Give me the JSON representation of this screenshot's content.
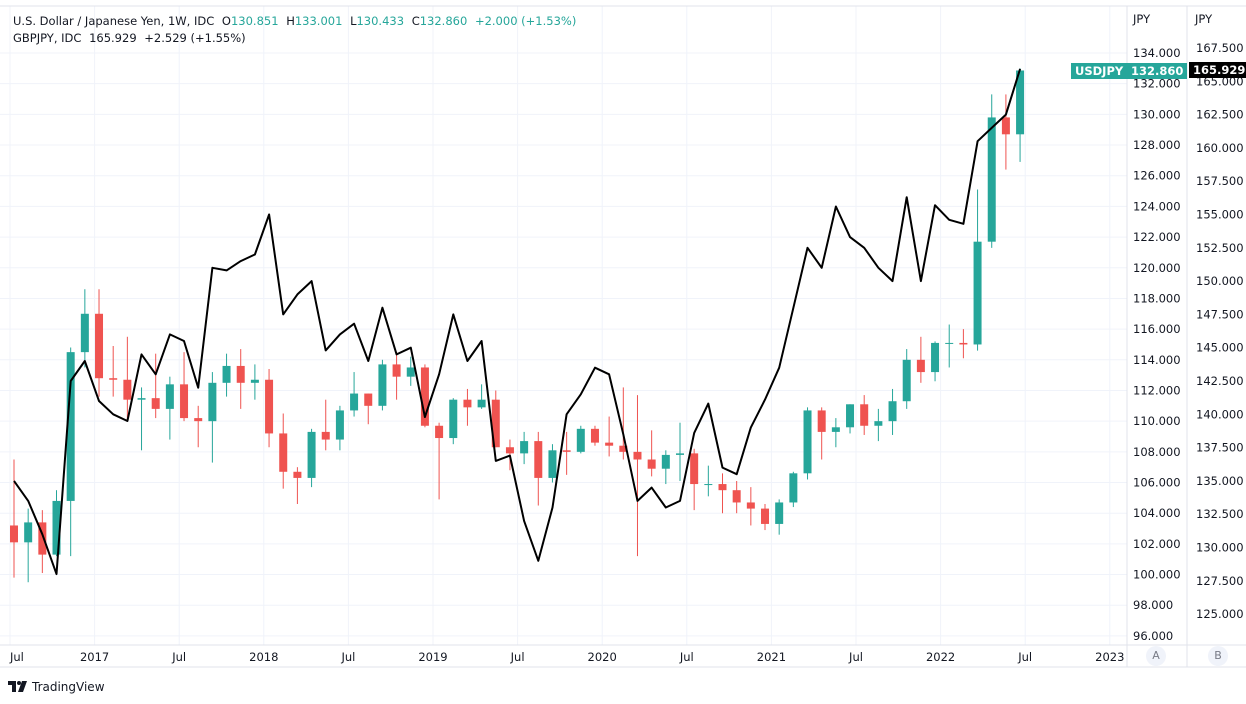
{
  "legend": {
    "main_title": "U.S. Dollar / Japanese Yen, 1W, IDC",
    "open_label": "O",
    "open": "130.851",
    "high_label": "H",
    "high": "133.001",
    "low_label": "L",
    "low": "130.433",
    "close_label": "C",
    "close": "132.860",
    "change": "+2.000 (+1.53%)",
    "compare_title": "GBPJPY, IDC",
    "compare_value": "165.929",
    "compare_change": "+2.529 (+1.55%)"
  },
  "axes": {
    "left_unit": "JPY",
    "right_unit": "JPY",
    "usdjpy_ticks": [
      "96.000",
      "98.000",
      "100.000",
      "102.000",
      "104.000",
      "106.000",
      "108.000",
      "110.000",
      "112.000",
      "114.000",
      "116.000",
      "118.000",
      "120.000",
      "122.000",
      "124.000",
      "126.000",
      "128.000",
      "130.000",
      "132.000",
      "134.000"
    ],
    "gbpjpy_ticks": [
      "125.000",
      "127.500",
      "130.000",
      "132.500",
      "135.000",
      "137.500",
      "140.000",
      "142.500",
      "145.000",
      "147.500",
      "150.000",
      "152.500",
      "155.000",
      "157.500",
      "160.000",
      "162.500",
      "165.000",
      "167.500"
    ],
    "time_ticks": [
      "Jul",
      "2017",
      "Jul",
      "2018",
      "Jul",
      "2019",
      "Jul",
      "2020",
      "Jul",
      "2021",
      "Jul",
      "2022",
      "Jul",
      "2023"
    ],
    "scale_buttons": [
      "A",
      "B"
    ]
  },
  "badges": {
    "symbol": "USDJPY",
    "usdjpy_price": "132.860",
    "gbpjpy_price": "165.929"
  },
  "brand": "TradingView",
  "colors": {
    "up": "#26a69a",
    "down": "#ef5350",
    "compare_line": "#000000",
    "grid": "#f0f3fa"
  },
  "chart_data": {
    "type": "candlestick+line",
    "grid": true,
    "usdjpy_range": [
      96,
      134
    ],
    "gbpjpy_range": [
      125,
      167.5
    ],
    "dates": [
      "2016-07",
      "2016-08",
      "2016-09",
      "2016-10",
      "2016-11",
      "2016-12",
      "2017-01",
      "2017-02",
      "2017-03",
      "2017-04",
      "2017-05",
      "2017-06",
      "2017-07",
      "2017-08",
      "2017-09",
      "2017-10",
      "2017-11",
      "2017-12",
      "2018-01",
      "2018-02",
      "2018-03",
      "2018-04",
      "2018-05",
      "2018-06",
      "2018-07",
      "2018-08",
      "2018-09",
      "2018-10",
      "2018-11",
      "2018-12",
      "2019-01",
      "2019-02",
      "2019-03",
      "2019-04",
      "2019-05",
      "2019-06",
      "2019-07",
      "2019-08",
      "2019-09",
      "2019-10",
      "2019-11",
      "2019-12",
      "2020-01",
      "2020-02",
      "2020-03",
      "2020-04",
      "2020-05",
      "2020-06",
      "2020-07",
      "2020-08",
      "2020-09",
      "2020-10",
      "2020-11",
      "2020-12",
      "2021-01",
      "2021-02",
      "2021-03",
      "2021-04",
      "2021-05",
      "2021-06",
      "2021-07",
      "2021-08",
      "2021-09",
      "2021-10",
      "2021-11",
      "2021-12",
      "2022-01",
      "2022-02",
      "2022-03",
      "2022-04",
      "2022-05",
      "2022-06"
    ],
    "usdjpy_ohlc": [
      [
        103.2,
        107.5,
        99.8,
        102.1
      ],
      [
        102.1,
        104.3,
        99.5,
        103.4
      ],
      [
        103.4,
        104.2,
        100.1,
        101.3
      ],
      [
        101.3,
        105.5,
        101.2,
        104.8
      ],
      [
        104.8,
        114.8,
        101.2,
        114.5
      ],
      [
        114.5,
        118.6,
        113.5,
        117.0
      ],
      [
        117.0,
        118.6,
        111.6,
        112.8
      ],
      [
        112.8,
        114.9,
        111.6,
        112.7
      ],
      [
        112.7,
        115.5,
        110.1,
        111.4
      ],
      [
        111.4,
        112.2,
        108.1,
        111.5
      ],
      [
        111.5,
        114.4,
        110.2,
        110.8
      ],
      [
        110.8,
        112.9,
        108.8,
        112.4
      ],
      [
        112.4,
        114.5,
        110.0,
        110.2
      ],
      [
        110.2,
        111.0,
        108.3,
        110.0
      ],
      [
        110.0,
        113.2,
        107.3,
        112.5
      ],
      [
        112.5,
        114.4,
        111.6,
        113.6
      ],
      [
        113.6,
        114.7,
        110.8,
        112.5
      ],
      [
        112.5,
        113.7,
        111.4,
        112.7
      ],
      [
        112.7,
        113.4,
        108.3,
        109.2
      ],
      [
        109.2,
        110.5,
        105.6,
        106.7
      ],
      [
        106.7,
        107.0,
        104.6,
        106.3
      ],
      [
        106.3,
        109.5,
        105.7,
        109.3
      ],
      [
        109.3,
        111.4,
        108.1,
        108.8
      ],
      [
        108.8,
        111.0,
        108.1,
        110.7
      ],
      [
        110.7,
        113.2,
        110.3,
        111.8
      ],
      [
        111.8,
        111.8,
        109.8,
        111.0
      ],
      [
        111.0,
        114.0,
        110.7,
        113.7
      ],
      [
        113.7,
        114.5,
        111.4,
        112.9
      ],
      [
        112.9,
        114.2,
        112.3,
        113.5
      ],
      [
        113.5,
        113.7,
        109.6,
        109.7
      ],
      [
        109.7,
        109.9,
        104.9,
        108.9
      ],
      [
        108.9,
        111.5,
        108.5,
        111.4
      ],
      [
        111.4,
        112.1,
        109.7,
        110.9
      ],
      [
        110.9,
        112.4,
        110.8,
        111.4
      ],
      [
        111.4,
        112.0,
        108.3,
        108.3
      ],
      [
        108.3,
        108.8,
        106.8,
        107.9
      ],
      [
        107.9,
        109.3,
        107.2,
        108.7
      ],
      [
        108.7,
        109.3,
        104.5,
        106.3
      ],
      [
        106.3,
        108.5,
        106.0,
        108.1
      ],
      [
        108.1,
        109.3,
        106.5,
        108.0
      ],
      [
        108.0,
        109.7,
        107.9,
        109.5
      ],
      [
        109.5,
        109.7,
        108.4,
        108.6
      ],
      [
        108.6,
        110.3,
        107.7,
        108.4
      ],
      [
        108.4,
        112.2,
        107.5,
        108.0
      ],
      [
        108.0,
        111.7,
        101.2,
        107.5
      ],
      [
        107.5,
        109.4,
        106.4,
        106.9
      ],
      [
        106.9,
        108.1,
        105.9,
        107.8
      ],
      [
        107.8,
        109.9,
        106.1,
        107.9
      ],
      [
        107.9,
        108.2,
        104.2,
        105.9
      ],
      [
        105.9,
        107.1,
        105.1,
        105.9
      ],
      [
        105.9,
        106.6,
        104.0,
        105.5
      ],
      [
        105.5,
        106.1,
        104.0,
        104.7
      ],
      [
        104.7,
        105.7,
        103.2,
        104.3
      ],
      [
        104.3,
        104.6,
        102.9,
        103.3
      ],
      [
        103.3,
        104.9,
        102.6,
        104.7
      ],
      [
        104.7,
        106.7,
        104.4,
        106.6
      ],
      [
        106.6,
        110.9,
        106.2,
        110.7
      ],
      [
        110.7,
        110.9,
        107.5,
        109.3
      ],
      [
        109.3,
        110.2,
        108.3,
        109.6
      ],
      [
        109.6,
        111.1,
        109.2,
        111.1
      ],
      [
        111.1,
        111.7,
        109.1,
        109.7
      ],
      [
        109.7,
        110.8,
        108.7,
        110.0
      ],
      [
        110.0,
        112.1,
        109.1,
        111.3
      ],
      [
        111.3,
        114.7,
        110.8,
        114.0
      ],
      [
        114.0,
        115.5,
        112.5,
        113.2
      ],
      [
        113.2,
        115.2,
        112.6,
        115.1
      ],
      [
        115.1,
        116.3,
        113.5,
        115.1
      ],
      [
        115.1,
        116.0,
        114.1,
        115.0
      ],
      [
        115.0,
        125.1,
        114.6,
        121.7
      ],
      [
        121.7,
        131.3,
        121.3,
        129.8
      ],
      [
        129.8,
        131.3,
        126.4,
        128.7
      ],
      [
        128.7,
        133.0,
        126.9,
        132.86
      ]
    ],
    "gbpjpy_close": [
      135.0,
      133.5,
      131.0,
      128.0,
      142.5,
      144.0,
      141.0,
      140.0,
      139.5,
      144.5,
      143.0,
      146.0,
      145.5,
      142.0,
      151.0,
      150.8,
      151.5,
      152.0,
      155.0,
      147.5,
      149.0,
      150.0,
      144.8,
      146.0,
      146.8,
      144.0,
      148.0,
      144.5,
      145.0,
      139.8,
      143.0,
      147.5,
      144.0,
      145.5,
      136.5,
      136.9,
      132.0,
      129.0,
      133.0,
      140.0,
      141.5,
      143.5,
      143.0,
      138.5,
      133.5,
      134.5,
      133.0,
      133.5,
      138.6,
      140.8,
      136.0,
      135.5,
      139.0,
      141.1,
      143.5,
      148.0,
      152.5,
      151.0,
      155.6,
      153.3,
      152.5,
      151.0,
      150.0,
      156.3,
      150.0,
      155.7,
      154.6,
      154.3,
      160.5,
      161.5,
      162.5,
      165.929
    ]
  }
}
